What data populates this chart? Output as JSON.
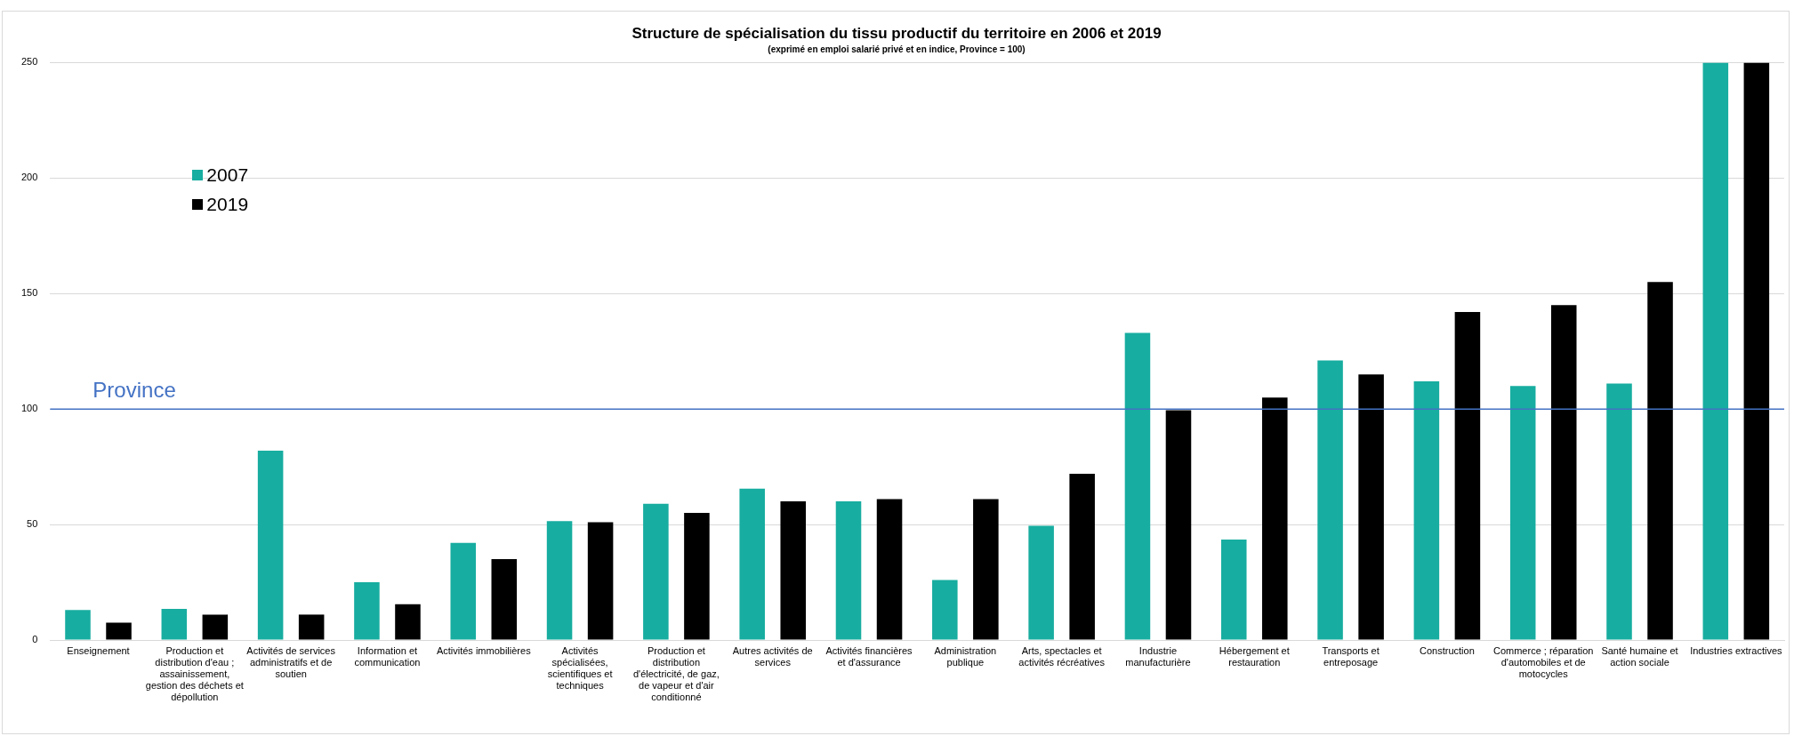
{
  "chart_data": {
    "type": "bar",
    "title": "Structure de spécialisation du tissu productif du territoire en 2006 et 2019",
    "subtitle": "(exprimé en emploi salarié privé et en indice, Province = 100)",
    "categories": [
      "Enseignement",
      "Production et distribution d'eau ; assainissement, gestion des déchets et dépollution",
      "Activités de services administratifs et de soutien",
      "Information et communication",
      "Activités immobilières",
      "Activités spécialisées, scientifiques et techniques",
      "Production et distribution d'électricité, de gaz, de vapeur et d'air conditionné",
      "Autres activités de services",
      "Activités financières et d'assurance",
      "Administration publique",
      "Arts, spectacles et activités récréatives",
      "Industrie manufacturière",
      "Hébergement et restauration",
      "Transports et entreposage",
      "Construction",
      "Commerce ; réparation d'automobiles et de motocycles",
      "Santé humaine et action sociale",
      "Industries extractives"
    ],
    "series": [
      {
        "name": "2007",
        "color": "#17ada0",
        "values": [
          13,
          13.5,
          82,
          25,
          42,
          51.5,
          59,
          65.5,
          60,
          26,
          49.5,
          133,
          43.5,
          121,
          112,
          110,
          111,
          250
        ]
      },
      {
        "name": "2019",
        "color": "#000000",
        "values": [
          7.5,
          11,
          11,
          15.5,
          35,
          51,
          55,
          60,
          61,
          61,
          72,
          99.5,
          105,
          115,
          142,
          145,
          155,
          250
        ]
      }
    ],
    "ylim": [
      0,
      250
    ],
    "yticks": [
      0,
      50,
      100,
      150,
      200,
      250
    ],
    "grid": "y",
    "legend": "left",
    "ref_lines": [
      {
        "axis": "y",
        "value": 100,
        "label": "Province",
        "color": "#4472c4"
      }
    ]
  }
}
